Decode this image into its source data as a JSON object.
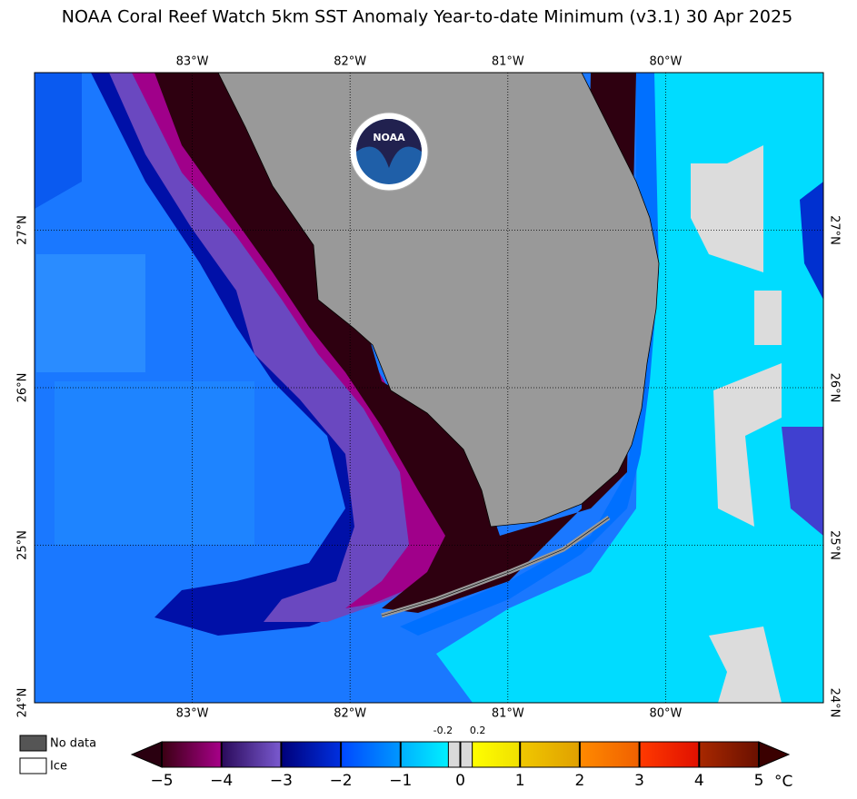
{
  "map": {
    "title": "NOAA Coral Reef Watch 5km SST Anomaly Year-to-date Minimum  (v3.1)   30 Apr 2025",
    "lonlim": [
      -84,
      -79
    ],
    "latlim": [
      24,
      28
    ],
    "lon_ticks": [
      {
        "value": -83,
        "label": "83°W"
      },
      {
        "value": -82,
        "label": "82°W"
      },
      {
        "value": -81,
        "label": "81°W"
      },
      {
        "value": -80,
        "label": "80°W"
      }
    ],
    "lat_ticks": [
      {
        "value": 27,
        "label": "27°N"
      },
      {
        "value": 26,
        "label": "26°N"
      },
      {
        "value": 25,
        "label": "25°N"
      },
      {
        "value": 24,
        "label": "24°N"
      }
    ],
    "logo": "NOAA",
    "legend": [
      {
        "label": "No data",
        "color": "#555555"
      },
      {
        "label": "Ice",
        "color": "#ffffff"
      }
    ],
    "colorbar": {
      "lim": [
        -5,
        5
      ],
      "unit": "°C",
      "low_color": "#2a0010",
      "high_color": "#3a0000",
      "segments": [
        {
          "from": -5,
          "to": -4,
          "colors": [
            "#3a0012",
            "#a8008a"
          ]
        },
        {
          "from": -4,
          "to": -3,
          "colors": [
            "#2a0a5a",
            "#7a5ad0"
          ]
        },
        {
          "from": -3,
          "to": -2,
          "colors": [
            "#00007a",
            "#0030e0"
          ]
        },
        {
          "from": -2,
          "to": -1,
          "colors": [
            "#0048ff",
            "#0098ff"
          ]
        },
        {
          "from": -1,
          "to": -0.2,
          "colors": [
            "#00b0ff",
            "#00f0ff"
          ]
        },
        {
          "from": -0.2,
          "to": 0.2,
          "colors": [
            "#d9d9d9",
            "#d9d9d9"
          ]
        },
        {
          "from": 0.2,
          "to": 1,
          "colors": [
            "#ffff00",
            "#f0e000"
          ]
        },
        {
          "from": 1,
          "to": 2,
          "colors": [
            "#f0c800",
            "#e0a000"
          ]
        },
        {
          "from": 2,
          "to": 3,
          "colors": [
            "#ff8a00",
            "#f06000"
          ]
        },
        {
          "from": 3,
          "to": 4,
          "colors": [
            "#ff3a00",
            "#e01000"
          ]
        },
        {
          "from": 4,
          "to": 5,
          "colors": [
            "#a82800",
            "#6a1000"
          ]
        }
      ],
      "ticks": [
        {
          "value": -5,
          "label": "−5"
        },
        {
          "value": -4,
          "label": "−4"
        },
        {
          "value": -3,
          "label": "−3"
        },
        {
          "value": -2,
          "label": "−2"
        },
        {
          "value": -1,
          "label": "−1"
        },
        0,
        1,
        2,
        3,
        4,
        5
      ],
      "minor_ticks": [
        -0.2,
        0.2
      ]
    }
  }
}
